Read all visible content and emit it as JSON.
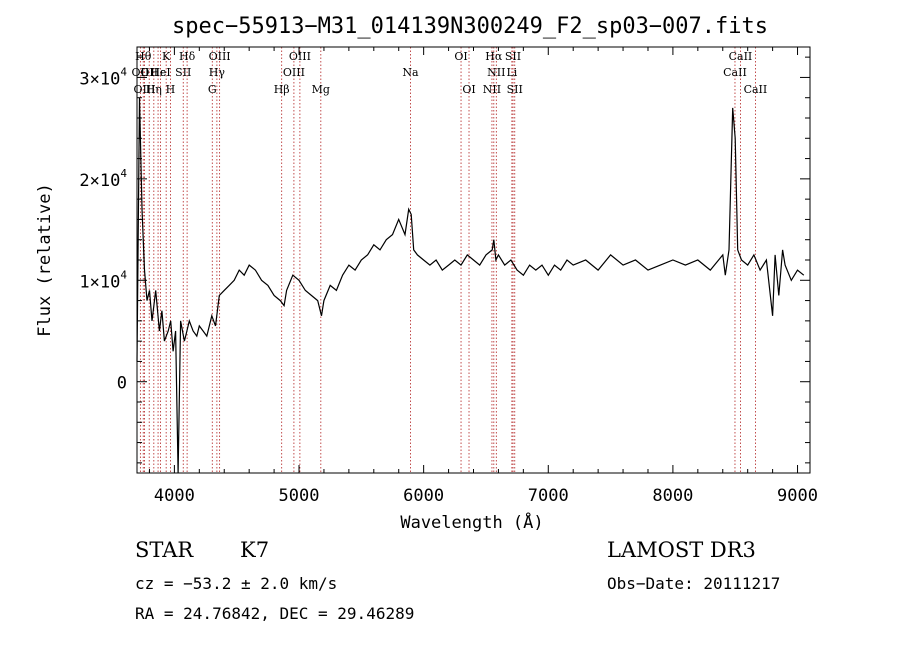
{
  "chart_data": {
    "type": "line",
    "title": "spec−55913−M31_014139N300249_F2_sp03−007.fits",
    "xlabel": "Wavelength (Å)",
    "ylabel": "Flux (relative)",
    "xlim": [
      3700,
      9100
    ],
    "ylim": [
      -9000,
      33000
    ],
    "x_ticks": [
      4000,
      5000,
      6000,
      7000,
      8000,
      9000
    ],
    "y_ticks": [
      {
        "value": 0,
        "mant": "0",
        "exp": ""
      },
      {
        "value": 10000,
        "mant": "1×10",
        "exp": "4"
      },
      {
        "value": 20000,
        "mant": "2×10",
        "exp": "4"
      },
      {
        "value": 30000,
        "mant": "3×10",
        "exp": "4"
      }
    ],
    "series": [
      {
        "x": [
          3700,
          3720,
          3740,
          3760,
          3780,
          3800,
          3820,
          3850,
          3880,
          3900,
          3920,
          3950,
          3970,
          3990,
          4010,
          4030,
          4050,
          4080,
          4100,
          4120,
          4150,
          4180,
          4200,
          4230,
          4260,
          4300,
          4330,
          4360,
          4400,
          4440,
          4480,
          4520,
          4560,
          4600,
          4650,
          4700,
          4750,
          4800,
          4850,
          4880,
          4900,
          4950,
          5000,
          5050,
          5100,
          5150,
          5180,
          5200,
          5250,
          5300,
          5350,
          5400,
          5450,
          5500,
          5550,
          5600,
          5650,
          5700,
          5750,
          5800,
          5850,
          5880,
          5900,
          5920,
          5950,
          6000,
          6050,
          6100,
          6150,
          6200,
          6250,
          6300,
          6350,
          6400,
          6450,
          6500,
          6550,
          6563,
          6580,
          6600,
          6650,
          6700,
          6750,
          6800,
          6850,
          6900,
          6950,
          7000,
          7050,
          7100,
          7150,
          7200,
          7300,
          7400,
          7500,
          7600,
          7700,
          7800,
          7900,
          8000,
          8100,
          8200,
          8300,
          8400,
          8420,
          8450,
          8480,
          8500,
          8520,
          8550,
          8600,
          8650,
          8700,
          8750,
          8800,
          8820,
          8850,
          8880,
          8900,
          8950,
          9000,
          9050
        ],
        "y": [
          2000,
          28000,
          17000,
          11000,
          8000,
          9000,
          6000,
          9000,
          5000,
          7000,
          4000,
          5000,
          6000,
          3000,
          5000,
          -9000,
          6000,
          4000,
          5000,
          6000,
          5000,
          4500,
          5500,
          5000,
          4500,
          6500,
          5500,
          8500,
          9000,
          9500,
          10000,
          11000,
          10500,
          11500,
          11000,
          10000,
          9500,
          8500,
          8000,
          7500,
          9000,
          10500,
          10000,
          9000,
          8500,
          8000,
          6500,
          8000,
          9500,
          9000,
          10500,
          11500,
          11000,
          12000,
          12500,
          13500,
          13000,
          14000,
          14500,
          16000,
          14500,
          17000,
          16500,
          13000,
          12500,
          12000,
          11500,
          12000,
          11000,
          11500,
          12000,
          11500,
          12500,
          12000,
          11500,
          12500,
          13000,
          14000,
          12000,
          12500,
          11500,
          12000,
          11000,
          10500,
          11500,
          11000,
          11500,
          10500,
          11500,
          11000,
          12000,
          11500,
          12000,
          11000,
          12500,
          11500,
          12000,
          11000,
          11500,
          12000,
          11500,
          12000,
          11000,
          12500,
          10500,
          13000,
          27000,
          24000,
          13000,
          12000,
          11500,
          12500,
          11000,
          12000,
          6500,
          12500,
          8500,
          13000,
          11500,
          10000,
          11000,
          10500
        ]
      }
    ],
    "lines": [
      {
        "w": 3727,
        "label": "OII",
        "row": 1
      },
      {
        "w": 3750,
        "label": "Hθ",
        "row": 0
      },
      {
        "w": 3760,
        "label": "OIII",
        "row": 2
      },
      {
        "w": 3798,
        "label": "OII",
        "row": 1
      },
      {
        "w": 3835,
        "label": "Hη",
        "row": 2
      },
      {
        "w": 3869,
        "label": "Hε",
        "row": 1
      },
      {
        "w": 3889,
        "label": "HeI",
        "row": 1
      },
      {
        "w": 3934,
        "label": "K",
        "row": 0
      },
      {
        "w": 3968,
        "label": "H",
        "row": 2
      },
      {
        "w": 4071,
        "label": "SII",
        "row": 1
      },
      {
        "w": 4102,
        "label": "Hδ",
        "row": 0
      },
      {
        "w": 4304,
        "label": "G",
        "row": 2
      },
      {
        "w": 4341,
        "label": "Hγ",
        "row": 1
      },
      {
        "w": 4363,
        "label": "OIII",
        "row": 0
      },
      {
        "w": 4861,
        "label": "Hβ",
        "row": 2
      },
      {
        "w": 4959,
        "label": "OIII",
        "row": 1
      },
      {
        "w": 5007,
        "label": "OIII",
        "row": 0
      },
      {
        "w": 5175,
        "label": "Mg",
        "row": 2
      },
      {
        "w": 5894,
        "label": "Na",
        "row": 1
      },
      {
        "w": 6300,
        "label": "OI",
        "row": 0
      },
      {
        "w": 6364,
        "label": "OI",
        "row": 2
      },
      {
        "w": 6548,
        "label": "NII",
        "row": 2
      },
      {
        "w": 6563,
        "label": "Hα",
        "row": 0
      },
      {
        "w": 6583,
        "label": "NII",
        "row": 1
      },
      {
        "w": 6708,
        "label": "Li",
        "row": 1
      },
      {
        "w": 6717,
        "label": "SII",
        "row": 0
      },
      {
        "w": 6731,
        "label": "SII",
        "row": 2
      },
      {
        "w": 8498,
        "label": "CaII",
        "row": 1
      },
      {
        "w": 8542,
        "label": "CaII",
        "row": 0
      },
      {
        "w": 8662,
        "label": "CaII",
        "row": 2
      }
    ]
  },
  "info": {
    "class": "STAR",
    "subclass": "K7",
    "survey": "LAMOST DR3",
    "cz": "cz = −53.2 ± 2.0 km/s",
    "obs_date": "Obs−Date: 20111217",
    "coords": "RA =  24.76842, DEC =  29.46289"
  }
}
